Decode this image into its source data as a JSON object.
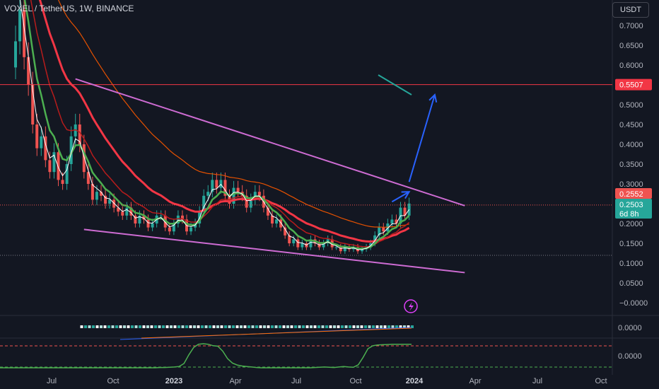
{
  "header": {
    "symbol": "VOXEL / TetherUS, 1W, BINANCE",
    "currency": "USDT"
  },
  "colors": {
    "background": "#131722",
    "up": "#26a69a",
    "down": "#ef5350",
    "ema_red": "#f23645",
    "ema_green": "#4caf50",
    "ema_darkred": "#b71c1c",
    "ema_orange": "#e65100",
    "white_ma": "#ffffff",
    "trendline": "#ce6cd3",
    "arrow": "#2962ff",
    "resistance": "#f23645"
  },
  "icons": {
    "lightning": "lightning-icon"
  },
  "chart_data": [
    {
      "type": "candlestick",
      "title": "VOXEL / TetherUS, 1W, BINANCE",
      "xlabel": "",
      "ylabel": "",
      "x_ticks": [
        "Jul",
        "Oct",
        "2023",
        "Apr",
        "Jul",
        "Oct",
        "2024",
        "Apr",
        "Jul",
        "Oct"
      ],
      "y_ticks": [
        "0.7000",
        "0.6500",
        "0.6000",
        "0.5500",
        "0.5000",
        "0.4500",
        "0.4000",
        "0.3500",
        "0.3000",
        "0.2500",
        "0.2000",
        "0.1500",
        "0.1000",
        "0.0500",
        "−0.0000"
      ],
      "ylim": [
        -0.005,
        0.735
      ],
      "grid": false,
      "price_labels": {
        "resistance": "0.5507",
        "high": "0.2552",
        "last": "0.2503",
        "countdown": "6d 8h"
      },
      "resistance": 0.5507,
      "last_price": 0.2503,
      "candles_close": [
        0.66,
        0.74,
        0.62,
        0.55,
        0.45,
        0.39,
        0.42,
        0.36,
        0.33,
        0.38,
        0.31,
        0.3,
        0.35,
        0.42,
        0.45,
        0.4,
        0.33,
        0.3,
        0.26,
        0.28,
        0.27,
        0.25,
        0.26,
        0.24,
        0.23,
        0.22,
        0.24,
        0.22,
        0.2,
        0.22,
        0.21,
        0.19,
        0.2,
        0.22,
        0.22,
        0.19,
        0.18,
        0.2,
        0.22,
        0.21,
        0.18,
        0.19,
        0.2,
        0.23,
        0.27,
        0.28,
        0.31,
        0.29,
        0.31,
        0.27,
        0.25,
        0.29,
        0.28,
        0.27,
        0.24,
        0.26,
        0.28,
        0.27,
        0.24,
        0.22,
        0.2,
        0.21,
        0.19,
        0.17,
        0.15,
        0.16,
        0.14,
        0.15,
        0.14,
        0.16,
        0.15,
        0.14,
        0.15,
        0.16,
        0.14,
        0.14,
        0.13,
        0.14,
        0.135,
        0.14,
        0.13,
        0.135,
        0.14,
        0.15,
        0.17,
        0.19,
        0.18,
        0.2,
        0.21,
        0.2,
        0.24,
        0.22,
        0.2503
      ],
      "series": [
        {
          "name": "",
          "values": []
        }
      ],
      "upper_trendline": [
        {
          "x": 14,
          "y": 0.565
        },
        {
          "x": 105,
          "y": 0.245
        }
      ],
      "lower_trendline": [
        {
          "x": 16,
          "y": 0.185
        },
        {
          "x": 105,
          "y": 0.076
        }
      ],
      "projection_arrows": [
        {
          "from": {
            "x": 88,
            "y": 0.255
          },
          "to": {
            "x": 92,
            "y": 0.28
          }
        },
        {
          "from": {
            "x": 92,
            "y": 0.305
          },
          "to": {
            "x": 98,
            "y": 0.525
          }
        }
      ]
    },
    {
      "type": "area",
      "panel": "volume",
      "y_ticks": [
        "0.0000"
      ]
    },
    {
      "type": "line",
      "panel": "oscillator",
      "y_ticks": [
        "0.0000"
      ],
      "values": [
        0.03,
        0.03,
        0.03,
        0.03,
        0.03,
        0.03,
        0.03,
        0.03,
        0.03,
        0.03,
        0.03,
        0.03,
        0.03,
        0.03,
        0.03,
        0.03,
        0.03,
        0.03,
        0.03,
        0.03,
        0.03,
        0.03,
        0.03,
        0.03,
        0.03,
        0.03,
        0.03,
        0.03,
        0.03,
        0.03,
        0.03,
        0.03,
        0.03,
        0.04,
        0.04,
        0.05,
        0.06,
        0.08,
        0.2,
        0.55,
        0.85,
        0.98,
        1.0,
        0.98,
        0.92,
        0.9,
        0.7,
        0.4,
        0.22,
        0.14,
        0.1,
        0.08,
        0.06,
        0.04,
        0.03,
        0.03,
        0.03,
        0.03,
        0.03,
        0.03,
        0.03,
        0.03,
        0.03,
        0.03,
        0.03,
        0.04,
        0.05,
        0.06,
        0.05,
        0.04,
        0.06,
        0.08,
        0.06,
        0.05,
        0.15,
        0.45,
        0.8,
        0.92,
        0.95,
        0.96,
        0.97,
        0.98,
        0.98,
        0.98,
        0.98,
        0.98
      ]
    }
  ]
}
